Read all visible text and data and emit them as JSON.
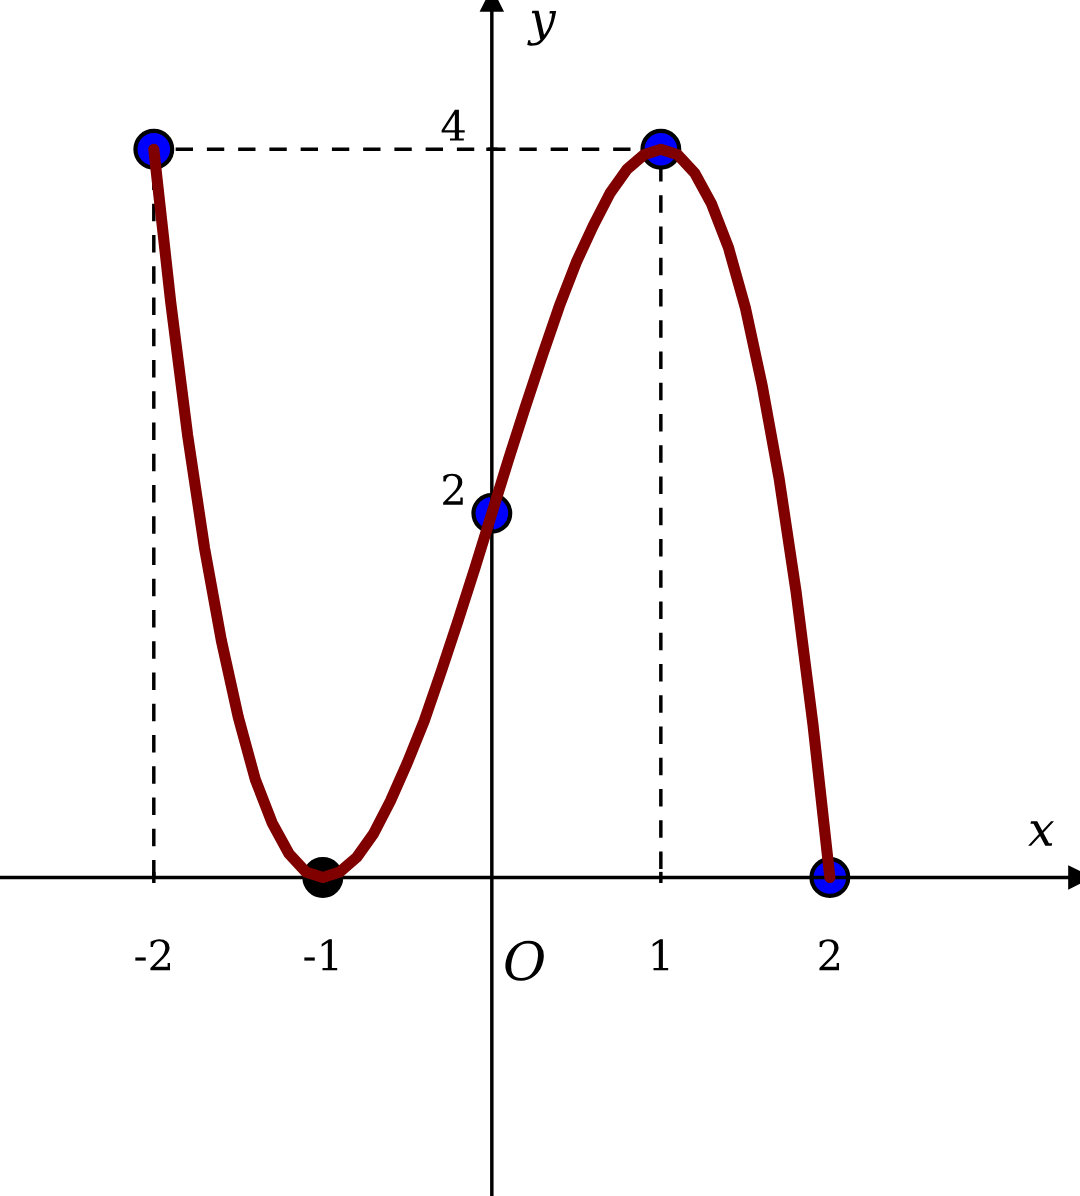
{
  "chart_data": {
    "type": "line",
    "xlabel": "x",
    "ylabel": "y",
    "xlim": [
      -2.91,
      3.48
    ],
    "ylim": [
      -1.75,
      4.82
    ],
    "xticks": [
      {
        "value": -2,
        "label": "-2"
      },
      {
        "value": -1,
        "label": "-1"
      },
      1,
      2
    ],
    "yticks": [
      2,
      4
    ],
    "grid": false,
    "legend": false,
    "series": [
      {
        "color": "#800000",
        "line_style": "solid",
        "marker": "none",
        "x": [
          -2,
          -1.9,
          -1.8,
          -1.7,
          -1.6,
          -1.5,
          -1.4,
          -1.3,
          -1.2,
          -1.1,
          -1,
          -0.9,
          -0.8,
          -0.7,
          -0.6,
          -0.5,
          -0.4,
          -0.3,
          -0.2,
          -0.1,
          0,
          0.1,
          0.2,
          0.3,
          0.4,
          0.5,
          0.6,
          0.7,
          0.8,
          0.9,
          1,
          1.1,
          1.2,
          1.3,
          1.4,
          1.5,
          1.6,
          1.7,
          1.8,
          1.9,
          2
        ],
        "values": [
          4,
          3.16,
          2.43,
          1.81,
          1.3,
          0.88,
          0.54,
          0.3,
          0.13,
          0.03,
          0,
          0.03,
          0.11,
          0.24,
          0.42,
          0.63,
          0.86,
          1.13,
          1.41,
          1.7,
          2,
          2.3,
          2.59,
          2.87,
          3.14,
          3.38,
          3.58,
          3.76,
          3.89,
          3.97,
          4,
          3.97,
          3.87,
          3.7,
          3.46,
          3.13,
          2.7,
          2.19,
          1.57,
          0.84,
          0
        ]
      },
      {
        "type": "line",
        "color": "#000000",
        "line_style": "dashed",
        "marker": "none",
        "x": [
          -2,
          -2,
          1,
          1
        ],
        "values": [
          0,
          4,
          4,
          0
        ]
      },
      {
        "type": "scatter",
        "marker": "circle",
        "colors": [
          "#0000ff",
          "#000000",
          "#0000ff",
          "#0000ff",
          "#0000ff"
        ],
        "x": [
          -2,
          -1,
          0,
          1,
          2
        ],
        "values": [
          4,
          0,
          2,
          4,
          0
        ]
      }
    ],
    "annotations": [
      "O"
    ]
  }
}
